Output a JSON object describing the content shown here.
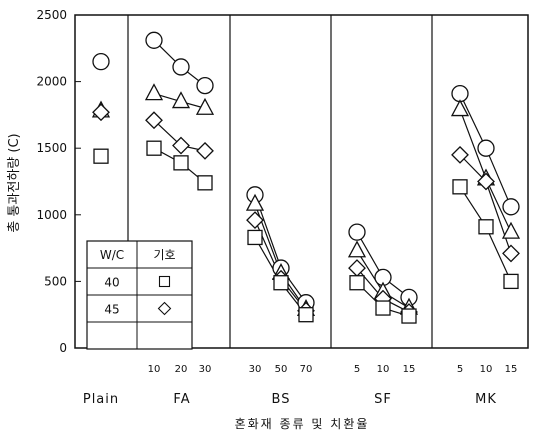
{
  "chart_data": {
    "type": "scatter",
    "ylabel": "총 통과전하량 (C)",
    "xlabel": "혼화재 종류 및 치환율",
    "ylim": [
      0,
      2500
    ],
    "yticks": [
      "0",
      "500",
      "1000",
      "1500",
      "2000",
      "2500"
    ],
    "yvalues": [
      0,
      500,
      1000,
      1500,
      2000,
      2500
    ],
    "grid": false,
    "groups": [
      {
        "name": "Plain",
        "ticks": [
          ""
        ],
        "series": [
          {
            "marker": "circle",
            "values": [
              2150
            ]
          },
          {
            "marker": "triangle",
            "values": [
              1780
            ]
          },
          {
            "marker": "diamond",
            "values": [
              1770
            ]
          },
          {
            "marker": "square",
            "values": [
              1440
            ]
          }
        ]
      },
      {
        "name": "FA",
        "ticks": [
          "10",
          "20",
          "30"
        ],
        "series": [
          {
            "marker": "circle",
            "values": [
              2310,
              2110,
              1970
            ]
          },
          {
            "marker": "triangle",
            "values": [
              1910,
              1850,
              1800
            ]
          },
          {
            "marker": "diamond",
            "values": [
              1710,
              1520,
              1480
            ]
          },
          {
            "marker": "square",
            "values": [
              1500,
              1390,
              1240
            ]
          }
        ]
      },
      {
        "name": "BS",
        "ticks": [
          "30",
          "50",
          "70"
        ],
        "series": [
          {
            "marker": "circle",
            "values": [
              1150,
              600,
              340
            ]
          },
          {
            "marker": "triangle",
            "values": [
              1080,
              560,
              290
            ]
          },
          {
            "marker": "diamond",
            "values": [
              960,
              520,
              280
            ]
          },
          {
            "marker": "square",
            "values": [
              830,
              490,
              250
            ]
          }
        ]
      },
      {
        "name": "SF",
        "ticks": [
          "5",
          "10",
          "15"
        ],
        "series": [
          {
            "marker": "circle",
            "values": [
              870,
              530,
              380
            ]
          },
          {
            "marker": "triangle",
            "values": [
              730,
              420,
              300
            ]
          },
          {
            "marker": "diamond",
            "values": [
              600,
              370,
              270
            ]
          },
          {
            "marker": "square",
            "values": [
              490,
              300,
              240
            ]
          }
        ]
      },
      {
        "name": "MK",
        "ticks": [
          "5",
          "10",
          "15"
        ],
        "series": [
          {
            "marker": "circle",
            "values": [
              1910,
              1500,
              1060
            ]
          },
          {
            "marker": "triangle",
            "values": [
              1790,
              1270,
              870
            ]
          },
          {
            "marker": "diamond",
            "values": [
              1450,
              1250,
              710
            ]
          },
          {
            "marker": "square",
            "values": [
              1210,
              910,
              500
            ]
          }
        ]
      }
    ],
    "legend": {
      "header": [
        "W/C",
        "기호"
      ],
      "rows": [
        {
          "label": "40",
          "marker": "square"
        },
        {
          "label": "45",
          "marker": "diamond"
        },
        {
          "label": "",
          "marker": ""
        }
      ]
    }
  }
}
